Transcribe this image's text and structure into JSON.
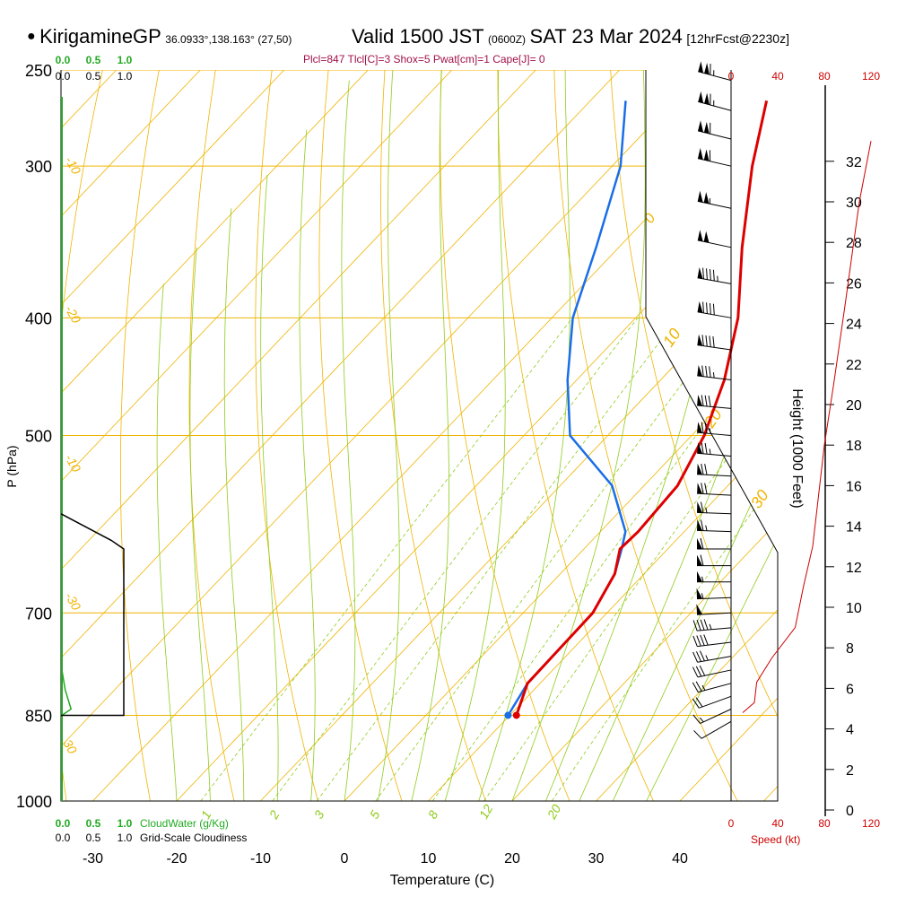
{
  "header": {
    "site": "KirigamineGP",
    "coords": "36.0933°,138.163° (27,50)",
    "valid": "Valid 1500 JST",
    "zulu": "(0600Z)",
    "date": "SAT 23 Mar 2024",
    "forecast": "[12hrFcst@2230z]"
  },
  "indices": "Plcl=847 Tlcl[C]=3 Shox=5 Pwat[cm]=1 Cape[J]= 0",
  "cloud_water_label": "CloudWater (g/Kg)",
  "cloudiness_label": "Grid-Scale Cloudiness",
  "colors": {
    "temperature": "#dd0000",
    "dewpoint": "#1a6ee8",
    "isobar": "#f0b400",
    "isotherm": "#f0b400",
    "dry_adiabat": "#f0b400",
    "moist_adiabat": "#8fcc1c",
    "mixing_ratio": "#8fcc1c",
    "cloud_water": "#22aa22",
    "wind_speed": "#cc0000"
  },
  "chart_data": {
    "type": "skew-t",
    "title": "KirigamineGP Valid 1500 JST (0600Z) SAT 23 Mar 2024",
    "xlabel": "Temperature (C)",
    "ylabel": "P (hPa)",
    "y2label": "Height (1000 Feet)",
    "speed_label": "Speed (kt)",
    "xlim": [
      -35,
      36
    ],
    "ylim_hpa": [
      1000,
      250
    ],
    "x_ticks": [
      -30,
      -20,
      -10,
      0,
      10,
      20,
      30,
      40
    ],
    "pressure_ticks": [
      250,
      300,
      400,
      500,
      700,
      850,
      1000
    ],
    "height_ticks_kft": [
      0,
      2,
      4,
      6,
      8,
      10,
      12,
      14,
      16,
      18,
      20,
      22,
      24,
      26,
      28,
      30,
      32
    ],
    "speed_ticks_kt": [
      0,
      40,
      80,
      120
    ],
    "cloud_ticks": [
      "0.0",
      "0.5",
      "1.0"
    ],
    "dry_adiabat_labels": [
      "-10",
      "0",
      "10",
      "20",
      "30"
    ],
    "moist_adiabat_labels": [
      "0",
      "10",
      "20",
      "30",
      "-10",
      "-20",
      "-30"
    ],
    "mixing_ratio_labels": [
      "1",
      "2",
      "3",
      "5",
      "8",
      "12",
      "20"
    ],
    "temperature": [
      {
        "p": 850,
        "t": 10.8
      },
      {
        "p": 800,
        "t": 8.5
      },
      {
        "p": 750,
        "t": 8.4
      },
      {
        "p": 700,
        "t": 8.3
      },
      {
        "p": 650,
        "t": 6.5
      },
      {
        "p": 620,
        "t": 4.3
      },
      {
        "p": 600,
        "t": 4.5
      },
      {
        "p": 550,
        "t": 4.0
      },
      {
        "p": 500,
        "t": 1.5
      },
      {
        "p": 450,
        "t": -2.4
      },
      {
        "p": 400,
        "t": -7.8
      },
      {
        "p": 350,
        "t": -15.3
      },
      {
        "p": 300,
        "t": -23.3
      },
      {
        "p": 265,
        "t": -29.0
      }
    ],
    "dewpoint": [
      {
        "p": 850,
        "t": 9.8
      },
      {
        "p": 800,
        "t": 8.5
      },
      {
        "p": 750,
        "t": 8.4
      },
      {
        "p": 700,
        "t": 8.3
      },
      {
        "p": 650,
        "t": 6.5
      },
      {
        "p": 620,
        "t": 4.5
      },
      {
        "p": 600,
        "t": 3.0
      },
      {
        "p": 550,
        "t": -3.8
      },
      {
        "p": 500,
        "t": -14.5
      },
      {
        "p": 450,
        "t": -21.1
      },
      {
        "p": 400,
        "t": -27.5
      },
      {
        "p": 350,
        "t": -32.7
      },
      {
        "p": 300,
        "t": -39.0
      },
      {
        "p": 265,
        "t": -45.8
      }
    ],
    "cloud_water_gkg": [
      {
        "p": 850,
        "v": 0.0
      },
      {
        "p": 840,
        "v": 0.14
      },
      {
        "p": 810,
        "v": 0.05
      },
      {
        "p": 780,
        "v": 0.0
      },
      {
        "p": 700,
        "v": 0.0
      },
      {
        "p": 650,
        "v": 0.0
      }
    ],
    "cloudiness": [
      {
        "p": 850,
        "v": 1.0
      },
      {
        "p": 700,
        "v": 1.0
      },
      {
        "p": 620,
        "v": 1.0
      },
      {
        "p": 610,
        "v": 0.8
      },
      {
        "p": 580,
        "v": 0.0
      }
    ],
    "wind_speed": [
      {
        "h": 4.8,
        "kt": 10
      },
      {
        "h": 5.3,
        "kt": 20
      },
      {
        "h": 6.3,
        "kt": 22
      },
      {
        "h": 7.5,
        "kt": 35
      },
      {
        "h": 9.0,
        "kt": 55
      },
      {
        "h": 11.0,
        "kt": 62
      },
      {
        "h": 13.0,
        "kt": 70
      },
      {
        "h": 16.0,
        "kt": 76
      },
      {
        "h": 18.0,
        "kt": 80
      },
      {
        "h": 21.0,
        "kt": 88
      },
      {
        "h": 25.0,
        "kt": 98
      },
      {
        "h": 30.0,
        "kt": 110
      },
      {
        "h": 33.0,
        "kt": 120
      }
    ],
    "wind_barbs": [
      {
        "p": 860,
        "dir": 240,
        "kt": 10
      },
      {
        "p": 840,
        "dir": 245,
        "kt": 15
      },
      {
        "p": 820,
        "dir": 250,
        "kt": 20
      },
      {
        "p": 800,
        "dir": 255,
        "kt": 25
      },
      {
        "p": 780,
        "dir": 258,
        "kt": 30
      },
      {
        "p": 760,
        "dir": 260,
        "kt": 35
      },
      {
        "p": 740,
        "dir": 263,
        "kt": 40
      },
      {
        "p": 720,
        "dir": 265,
        "kt": 45
      },
      {
        "p": 700,
        "dir": 267,
        "kt": 50
      },
      {
        "p": 680,
        "dir": 268,
        "kt": 55
      },
      {
        "p": 660,
        "dir": 270,
        "kt": 55
      },
      {
        "p": 640,
        "dir": 270,
        "kt": 60
      },
      {
        "p": 620,
        "dir": 270,
        "kt": 60
      },
      {
        "p": 600,
        "dir": 272,
        "kt": 65
      },
      {
        "p": 580,
        "dir": 272,
        "kt": 65
      },
      {
        "p": 560,
        "dir": 273,
        "kt": 70
      },
      {
        "p": 540,
        "dir": 273,
        "kt": 70
      },
      {
        "p": 520,
        "dir": 275,
        "kt": 75
      },
      {
        "p": 500,
        "dir": 275,
        "kt": 75
      },
      {
        "p": 475,
        "dir": 275,
        "kt": 80
      },
      {
        "p": 450,
        "dir": 277,
        "kt": 85
      },
      {
        "p": 425,
        "dir": 278,
        "kt": 90
      },
      {
        "p": 400,
        "dir": 280,
        "kt": 90
      },
      {
        "p": 375,
        "dir": 280,
        "kt": 95
      },
      {
        "p": 350,
        "dir": 282,
        "kt": 100
      },
      {
        "p": 325,
        "dir": 282,
        "kt": 105
      },
      {
        "p": 300,
        "dir": 283,
        "kt": 110
      },
      {
        "p": 285,
        "dir": 284,
        "kt": 110
      },
      {
        "p": 270,
        "dir": 285,
        "kt": 115
      },
      {
        "p": 255,
        "dir": 285,
        "kt": 115
      }
    ],
    "grid": true,
    "legend": "none"
  }
}
